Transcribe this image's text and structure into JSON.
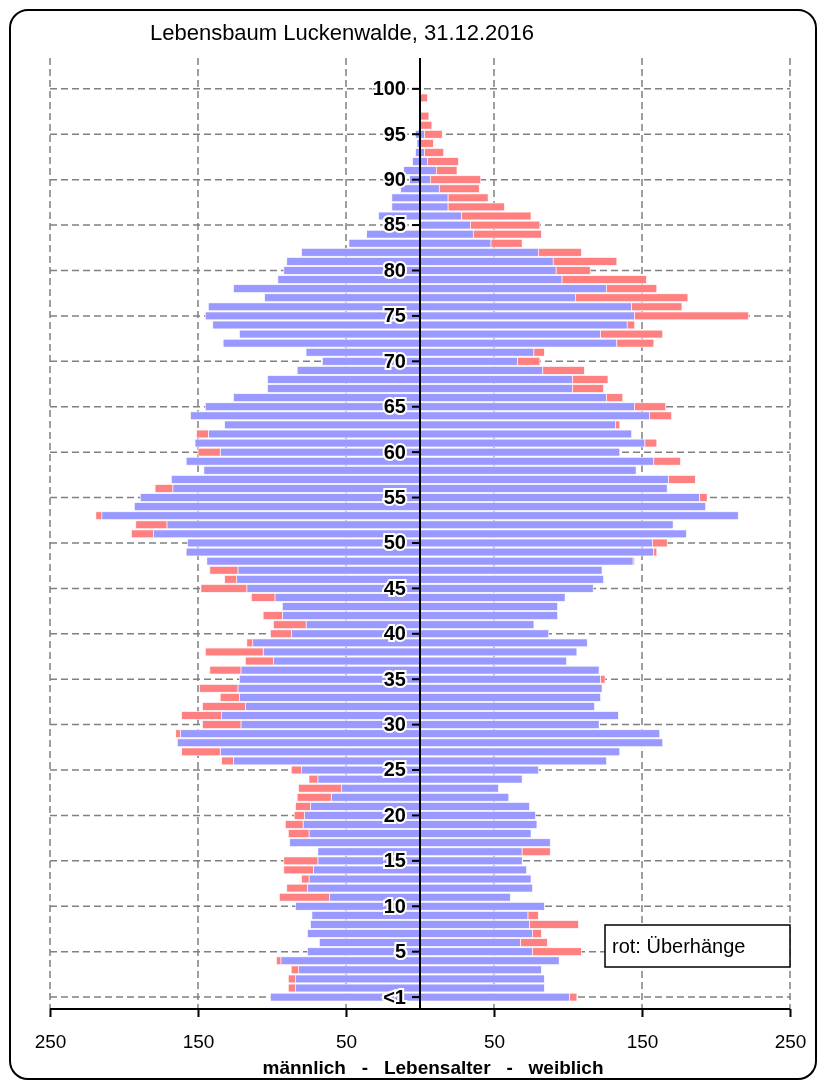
{
  "chart_data": {
    "type": "bar",
    "orientation": "horizontal",
    "stacked": true,
    "title": "Lebensbaum Luckenwalde, 31.12.2016",
    "xlabel": "männlich   -   Lebensalter   -   weiblich",
    "annotations": [
      "rot: Überhänge"
    ],
    "grid": true,
    "categories": [
      "100",
      null,
      null,
      null,
      null,
      "95",
      null,
      null,
      null,
      null,
      "90",
      null,
      null,
      null,
      null,
      "85",
      null,
      null,
      null,
      null,
      "80",
      null,
      null,
      null,
      null,
      "75",
      null,
      null,
      null,
      null,
      "70",
      null,
      null,
      null,
      null,
      "65",
      null,
      null,
      null,
      null,
      "60",
      null,
      null,
      null,
      null,
      "55",
      null,
      null,
      null,
      null,
      "50",
      null,
      null,
      null,
      null,
      "45",
      null,
      null,
      null,
      null,
      "40",
      null,
      null,
      null,
      null,
      "35",
      null,
      null,
      null,
      null,
      "30",
      null,
      null,
      null,
      null,
      "25",
      null,
      null,
      null,
      null,
      "20",
      null,
      null,
      null,
      null,
      "15",
      null,
      null,
      null,
      null,
      "10",
      null,
      null,
      null,
      null,
      "5",
      null,
      null,
      null,
      null,
      "<1"
    ],
    "xlim": [
      -250,
      250
    ],
    "xticks": [
      {
        "value": -250,
        "label": "250"
      },
      {
        "value": -150,
        "label": "150"
      },
      {
        "value": -50,
        "label": "50"
      },
      50,
      150,
      250
    ],
    "series": [
      {
        "color": "#9999ff",
        "values": [
          null,
          null,
          null,
          null,
          null,
          -3,
          -2,
          -3,
          -5,
          -11,
          -7,
          -13,
          -19,
          -19,
          -28,
          null,
          -36,
          -48,
          -80,
          -90,
          -92,
          -96,
          -126,
          -105,
          -143,
          -145,
          -140,
          -122,
          -133,
          -77,
          -66,
          -83,
          -103,
          -103,
          -126,
          -145,
          -155,
          -132,
          -143,
          -152,
          -135,
          -158,
          -146,
          -168,
          -167,
          -189,
          -193,
          -215,
          -171,
          -180,
          -157,
          -158,
          -144,
          -123,
          -124,
          -117,
          -98,
          -93,
          -93,
          -77,
          -87,
          -113,
          -106,
          -99,
          -121,
          -122,
          -123,
          -122,
          -118,
          -134,
          -121,
          -162,
          -164,
          -135,
          -126,
          -80,
          -69,
          -53,
          -60,
          -74,
          -78,
          -79,
          -75,
          -88,
          -69,
          -69,
          -72,
          -75,
          -76,
          -61,
          -84,
          -73,
          -74,
          -76,
          -68,
          -76,
          -94,
          -82,
          -84,
          -84,
          -101
        ]
      },
      {
        "color": "#ff8080",
        "values": [
          null,
          null,
          null,
          null,
          null,
          null,
          null,
          null,
          null,
          null,
          null,
          null,
          null,
          null,
          null,
          null,
          null,
          null,
          null,
          null,
          null,
          null,
          null,
          null,
          null,
          null,
          null,
          null,
          null,
          null,
          null,
          null,
          null,
          null,
          null,
          null,
          null,
          null,
          -8,
          null,
          -15,
          null,
          null,
          null,
          -12,
          null,
          null,
          -4,
          -21,
          -15,
          null,
          null,
          null,
          -19,
          -8,
          -31,
          -16,
          null,
          -13,
          -22,
          -14,
          -4,
          -39,
          -19,
          -21,
          null,
          -26,
          -13,
          -29,
          -27,
          -26,
          -3,
          null,
          -26,
          -8,
          -7,
          -6,
          -29,
          -23,
          -10,
          -7,
          -12,
          -14,
          null,
          null,
          -23,
          -20,
          -5,
          -14,
          -34,
          null,
          null,
          null,
          null,
          null,
          null,
          -3,
          -5,
          -5,
          -5,
          null
        ]
      },
      {
        "color": "#9999ff",
        "values": [
          null,
          null,
          null,
          null,
          null,
          3,
          null,
          3,
          5,
          11,
          7,
          13,
          19,
          19,
          28,
          34,
          36,
          48,
          80,
          90,
          92,
          96,
          126,
          105,
          143,
          145,
          140,
          122,
          133,
          77,
          66,
          83,
          103,
          103,
          126,
          145,
          155,
          132,
          143,
          152,
          135,
          158,
          146,
          168,
          167,
          189,
          193,
          215,
          171,
          180,
          157,
          158,
          144,
          123,
          124,
          117,
          98,
          93,
          93,
          77,
          87,
          113,
          106,
          99,
          121,
          122,
          123,
          122,
          118,
          134,
          121,
          162,
          164,
          135,
          126,
          80,
          69,
          53,
          60,
          74,
          78,
          79,
          75,
          88,
          69,
          69,
          72,
          75,
          76,
          61,
          84,
          73,
          74,
          76,
          68,
          76,
          94,
          82,
          84,
          84,
          101
        ]
      },
      {
        "color": "#ff8080",
        "values": [
          null,
          5,
          null,
          6,
          8,
          12,
          9,
          13,
          21,
          14,
          34,
          27,
          27,
          38,
          47,
          47,
          46,
          21,
          29,
          43,
          23,
          57,
          34,
          76,
          34,
          77,
          5,
          42,
          25,
          7,
          15,
          28,
          24,
          21,
          11,
          21,
          15,
          3,
          null,
          8,
          null,
          18,
          null,
          18,
          null,
          5,
          null,
          null,
          null,
          null,
          10,
          2,
          1,
          null,
          null,
          null,
          null,
          null,
          null,
          null,
          null,
          null,
          null,
          null,
          null,
          3,
          null,
          null,
          null,
          null,
          null,
          null,
          null,
          null,
          null,
          null,
          null,
          null,
          null,
          null,
          null,
          null,
          null,
          null,
          19,
          null,
          null,
          null,
          null,
          null,
          null,
          7,
          33,
          6,
          18,
          33,
          null,
          null,
          null,
          null,
          5
        ]
      }
    ]
  }
}
